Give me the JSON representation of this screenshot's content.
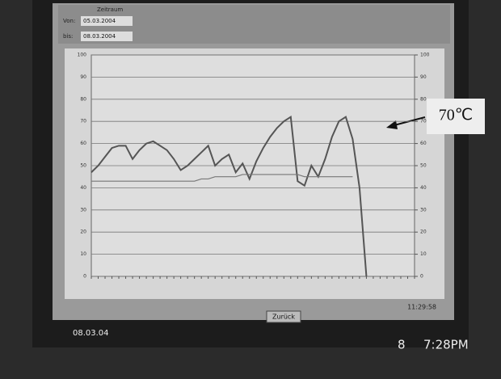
{
  "ui": {
    "range_label": "Zeitraum",
    "from_label": "Von:",
    "from": "05.03.2004",
    "to_label": "bis:",
    "to": "08.03.2004",
    "back_button": "Zurück",
    "clock": "11:29:58",
    "date_stamp": "08.03.04",
    "cam_day": "8",
    "cam_time": "7:28PM"
  },
  "chart_data": {
    "type": "line",
    "annotation": "70℃",
    "categories": [
      null,
      null,
      null,
      null,
      null,
      null,
      null,
      null,
      null,
      null,
      null,
      null,
      null,
      null,
      null,
      null,
      null,
      null,
      null,
      null,
      null,
      null,
      null,
      null,
      null,
      null,
      null,
      null,
      null,
      null,
      null,
      null,
      null,
      null,
      null,
      null,
      null,
      null,
      null,
      null,
      null,
      null,
      null,
      null,
      null,
      null,
      null,
      null
    ],
    "series": [
      {
        "color": "#555555",
        "values": [
          47,
          50,
          54,
          58,
          59,
          59,
          53,
          57,
          60,
          61,
          59,
          57,
          53,
          48,
          50,
          53,
          56,
          59,
          50,
          53,
          55,
          47,
          51,
          44,
          52,
          58,
          63,
          67,
          70,
          72,
          43,
          41,
          50,
          45,
          53,
          63,
          70,
          72,
          62,
          40,
          0,
          null,
          null,
          null,
          null,
          null,
          null,
          null
        ]
      },
      {
        "color": "#777777",
        "values": [
          43,
          43,
          43,
          43,
          43,
          43,
          43,
          43,
          43,
          43,
          43,
          43,
          43,
          43,
          43,
          43,
          44,
          44,
          45,
          45,
          45,
          45,
          46,
          46,
          46,
          46,
          46,
          46,
          46,
          46,
          46,
          45,
          45,
          45,
          45,
          45,
          45,
          45,
          45,
          null,
          null,
          null,
          null,
          null,
          null,
          null,
          null,
          null
        ]
      }
    ],
    "ylim": [
      0,
      100
    ],
    "yticks": [
      0,
      10,
      20,
      30,
      40,
      50,
      60,
      70,
      80,
      90,
      100
    ],
    "y2lim": [
      0,
      100
    ],
    "y2ticks": [
      0,
      10,
      20,
      30,
      40,
      50,
      60,
      70,
      80,
      90,
      100
    ],
    "grid": true
  }
}
